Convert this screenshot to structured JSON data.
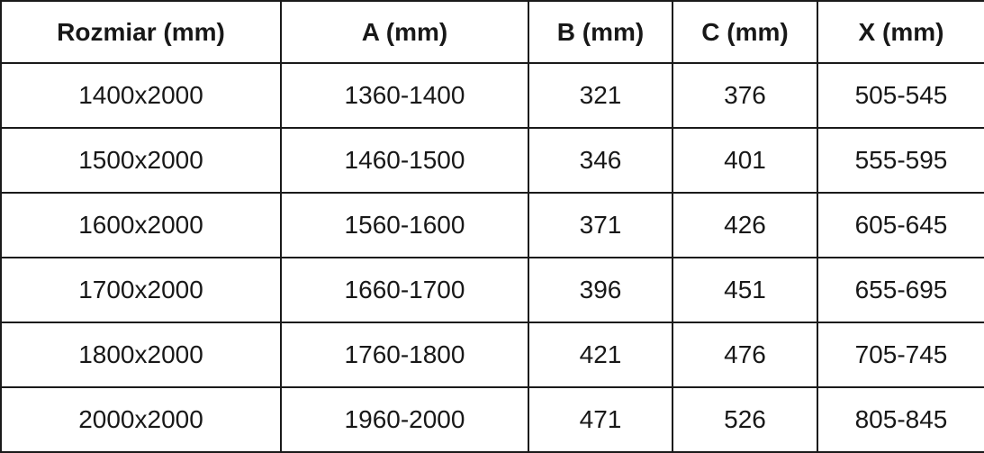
{
  "table": {
    "columns": [
      "Rozmiar (mm)",
      "A (mm)",
      "B (mm)",
      "C (mm)",
      "X (mm)"
    ],
    "rows": [
      [
        "1400x2000",
        "1360-1400",
        "321",
        "376",
        "505-545"
      ],
      [
        "1500x2000",
        "1460-1500",
        "346",
        "401",
        "555-595"
      ],
      [
        "1600x2000",
        "1560-1600",
        "371",
        "426",
        "605-645"
      ],
      [
        "1700x2000",
        "1660-1700",
        "396",
        "451",
        "655-695"
      ],
      [
        "1800x2000",
        "1760-1800",
        "421",
        "476",
        "705-745"
      ],
      [
        "2000x2000",
        "1960-2000",
        "471",
        "526",
        "805-845"
      ]
    ]
  },
  "chart_data": {
    "type": "table",
    "title": "",
    "columns": [
      "Rozmiar (mm)",
      "A (mm)",
      "B (mm)",
      "C (mm)",
      "X (mm)"
    ],
    "rows": [
      [
        "1400x2000",
        "1360-1400",
        "321",
        "376",
        "505-545"
      ],
      [
        "1500x2000",
        "1460-1500",
        "346",
        "401",
        "555-595"
      ],
      [
        "1600x2000",
        "1560-1600",
        "371",
        "426",
        "605-645"
      ],
      [
        "1700x2000",
        "1660-1700",
        "396",
        "451",
        "655-695"
      ],
      [
        "1800x2000",
        "1760-1800",
        "421",
        "476",
        "705-745"
      ],
      [
        "2000x2000",
        "1960-2000",
        "471",
        "526",
        "805-845"
      ]
    ]
  },
  "colors": {
    "border": "#1a1a1a",
    "text": "#181818",
    "background": "#ffffff"
  }
}
